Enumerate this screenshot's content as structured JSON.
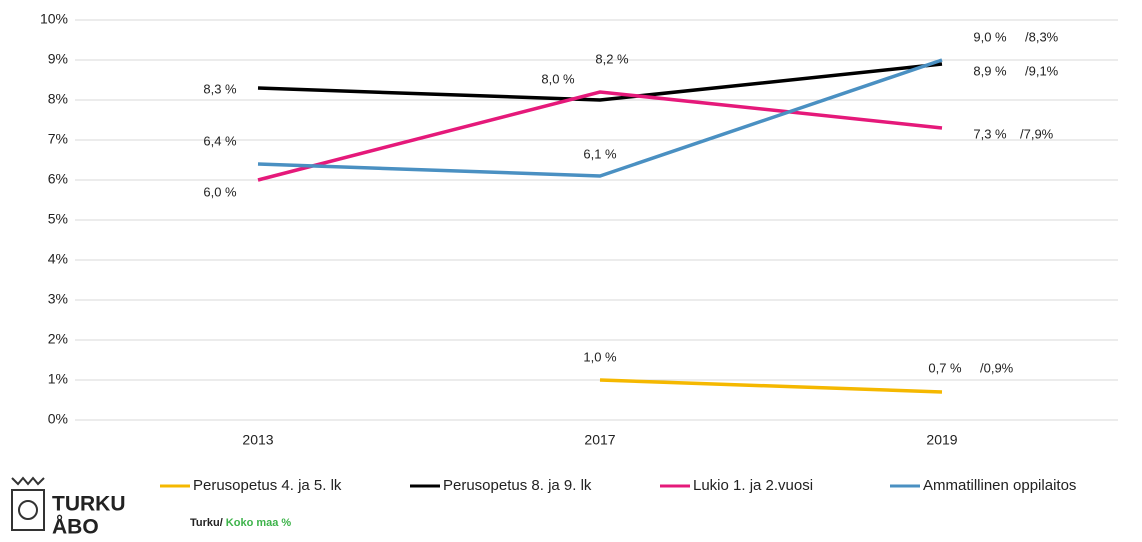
{
  "chart_data": {
    "type": "line",
    "categories": [
      "2013",
      "2017",
      "2019"
    ],
    "ylim": [
      0,
      10
    ],
    "yticks": [
      {
        "value": 0,
        "label": "0%"
      },
      {
        "value": 1,
        "label": "1%"
      },
      {
        "value": 2,
        "label": "2%"
      },
      {
        "value": 3,
        "label": "3%"
      },
      {
        "value": 4,
        "label": "4%"
      },
      {
        "value": 5,
        "label": "5%"
      },
      {
        "value": 6,
        "label": "6%"
      },
      {
        "value": 7,
        "label": "7%"
      },
      {
        "value": 8,
        "label": "8%"
      },
      {
        "value": 9,
        "label": "9%"
      },
      {
        "value": 10,
        "label": "10%"
      }
    ],
    "grid": true,
    "legend": "bottom",
    "comparison_color": "#3db34a",
    "series": [
      {
        "name": "Perusopetus 4. ja 5. lk",
        "color": "#f5b800",
        "values": [
          null,
          1.0,
          0.7
        ],
        "value_labels": [
          null,
          "1,0 %",
          "0,7 %"
        ],
        "comparison_labels": [
          null,
          null,
          "/0,9%"
        ]
      },
      {
        "name": "Perusopetus 8. ja 9. lk",
        "color": "#000000",
        "values": [
          8.3,
          8.0,
          8.9
        ],
        "value_labels": [
          "8,3 %",
          "8,0 %",
          "8,9 %"
        ],
        "comparison_labels": [
          null,
          null,
          "/9,1%"
        ]
      },
      {
        "name": "Lukio 1. ja 2.vuosi",
        "color": "#e5197a",
        "values": [
          6.0,
          8.2,
          7.3
        ],
        "value_labels": [
          "6,0 %",
          "8,2 %",
          "7,3 %"
        ],
        "comparison_labels": [
          null,
          null,
          "/7,9%"
        ]
      },
      {
        "name": "Ammatillinen oppilaitos",
        "color": "#4a90c2",
        "values": [
          6.4,
          6.1,
          9.0
        ],
        "value_labels": [
          "6,4 %",
          "6,1 %",
          "9,0 %"
        ],
        "comparison_labels": [
          null,
          null,
          "/8,3%"
        ]
      }
    ]
  },
  "footer": {
    "logo_line1": "TURKU",
    "logo_line2": "ÅBO",
    "note_city": "Turku/",
    "note_country": "Koko maa %"
  }
}
